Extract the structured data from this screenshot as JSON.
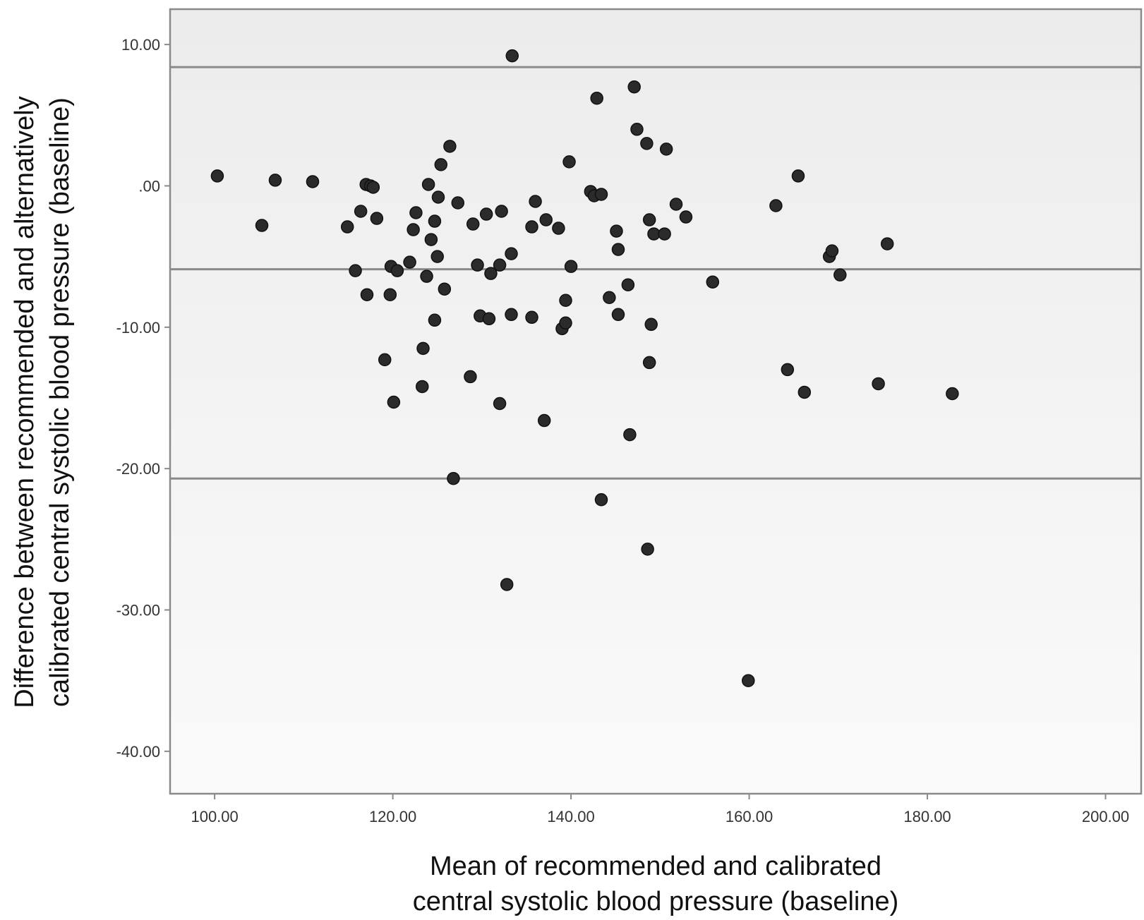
{
  "chart_data": {
    "type": "scatter",
    "xlabel_lines": [
      "Mean of recommended and calibrated",
      "central systolic blood pressure (baseline)"
    ],
    "ylabel_lines": [
      "Difference between recommended and alternatively",
      "calibrated central systolic blood pressure (baseline)"
    ],
    "xlim": [
      95,
      204
    ],
    "ylim": [
      -43,
      12.5
    ],
    "x_ticks": [
      100,
      120,
      140,
      160,
      180,
      200
    ],
    "x_tick_labels": [
      "100.00",
      "120.00",
      "140.00",
      "160.00",
      "180.00",
      "200.00"
    ],
    "y_ticks": [
      10,
      0,
      -10,
      -20,
      -30,
      -40
    ],
    "y_tick_labels": [
      "10.00",
      ".00",
      "-10.00",
      "-20.00",
      "-30.00",
      "-40.00"
    ],
    "reference_lines": [
      8.4,
      -5.9,
      -20.7
    ],
    "grid": false,
    "legend": "none",
    "colors": {
      "points": "#2b2b2b",
      "reference_line": "#8a8a8a",
      "frame": "#8a8a8a",
      "plot_bg_top": "#ececec",
      "plot_bg_bottom": "#fafafa"
    },
    "points": [
      {
        "x": 100.3,
        "y": 0.7
      },
      {
        "x": 105.3,
        "y": -2.8
      },
      {
        "x": 106.8,
        "y": 0.4
      },
      {
        "x": 111.0,
        "y": 0.3
      },
      {
        "x": 114.9,
        "y": -2.9
      },
      {
        "x": 115.8,
        "y": -6.0
      },
      {
        "x": 116.4,
        "y": -1.8
      },
      {
        "x": 117.0,
        "y": 0.1
      },
      {
        "x": 117.1,
        "y": -7.7
      },
      {
        "x": 117.5,
        "y": 0.0
      },
      {
        "x": 117.8,
        "y": -0.1
      },
      {
        "x": 118.2,
        "y": -2.3
      },
      {
        "x": 119.1,
        "y": -12.3
      },
      {
        "x": 119.8,
        "y": -5.7
      },
      {
        "x": 119.7,
        "y": -7.7
      },
      {
        "x": 120.1,
        "y": -15.3
      },
      {
        "x": 120.5,
        "y": -6.0
      },
      {
        "x": 121.9,
        "y": -5.4
      },
      {
        "x": 122.3,
        "y": -3.1
      },
      {
        "x": 122.6,
        "y": -1.9
      },
      {
        "x": 123.3,
        "y": -14.2
      },
      {
        "x": 123.4,
        "y": -11.5
      },
      {
        "x": 123.8,
        "y": -6.4
      },
      {
        "x": 124.0,
        "y": 0.1
      },
      {
        "x": 124.3,
        "y": -3.8
      },
      {
        "x": 124.7,
        "y": -2.5
      },
      {
        "x": 124.7,
        "y": -9.5
      },
      {
        "x": 125.0,
        "y": -5.0
      },
      {
        "x": 125.1,
        "y": -0.8
      },
      {
        "x": 125.4,
        "y": 1.5
      },
      {
        "x": 125.8,
        "y": -7.3
      },
      {
        "x": 126.4,
        "y": 2.8
      },
      {
        "x": 126.8,
        "y": -20.7
      },
      {
        "x": 127.3,
        "y": -1.2
      },
      {
        "x": 128.7,
        "y": -13.5
      },
      {
        "x": 129.0,
        "y": -2.7
      },
      {
        "x": 129.5,
        "y": -5.6
      },
      {
        "x": 129.8,
        "y": -9.2
      },
      {
        "x": 130.5,
        "y": -2.0
      },
      {
        "x": 130.8,
        "y": -9.4
      },
      {
        "x": 131.0,
        "y": -6.2
      },
      {
        "x": 132.0,
        "y": -15.4
      },
      {
        "x": 132.0,
        "y": -5.6
      },
      {
        "x": 132.2,
        "y": -1.8
      },
      {
        "x": 132.8,
        "y": -28.2
      },
      {
        "x": 133.3,
        "y": -9.1
      },
      {
        "x": 133.3,
        "y": -4.8
      },
      {
        "x": 133.4,
        "y": 9.2
      },
      {
        "x": 135.6,
        "y": -2.9
      },
      {
        "x": 135.6,
        "y": -9.3
      },
      {
        "x": 136.0,
        "y": -1.1
      },
      {
        "x": 137.0,
        "y": -16.6
      },
      {
        "x": 137.2,
        "y": -2.4
      },
      {
        "x": 138.6,
        "y": -3.0
      },
      {
        "x": 139.0,
        "y": -10.1
      },
      {
        "x": 139.4,
        "y": -8.1
      },
      {
        "x": 139.4,
        "y": -9.7
      },
      {
        "x": 139.8,
        "y": 1.7
      },
      {
        "x": 140.0,
        "y": -5.7
      },
      {
        "x": 142.2,
        "y": -0.4
      },
      {
        "x": 142.6,
        "y": -0.7
      },
      {
        "x": 142.9,
        "y": 6.2
      },
      {
        "x": 143.4,
        "y": -0.6
      },
      {
        "x": 143.4,
        "y": -22.2
      },
      {
        "x": 144.3,
        "y": -7.9
      },
      {
        "x": 145.1,
        "y": -3.2
      },
      {
        "x": 145.3,
        "y": -4.5
      },
      {
        "x": 145.3,
        "y": -9.1
      },
      {
        "x": 146.4,
        "y": -7.0
      },
      {
        "x": 146.6,
        "y": -17.6
      },
      {
        "x": 147.1,
        "y": 7.0
      },
      {
        "x": 147.4,
        "y": 4.0
      },
      {
        "x": 148.5,
        "y": 3.0
      },
      {
        "x": 148.6,
        "y": -25.7
      },
      {
        "x": 148.8,
        "y": -2.4
      },
      {
        "x": 148.8,
        "y": -12.5
      },
      {
        "x": 149.0,
        "y": -9.8
      },
      {
        "x": 149.3,
        "y": -3.4
      },
      {
        "x": 150.5,
        "y": -3.4
      },
      {
        "x": 150.7,
        "y": 2.6
      },
      {
        "x": 151.8,
        "y": -1.3
      },
      {
        "x": 152.9,
        "y": -2.2
      },
      {
        "x": 155.9,
        "y": -6.8
      },
      {
        "x": 159.9,
        "y": -35.0
      },
      {
        "x": 163.0,
        "y": -1.4
      },
      {
        "x": 164.3,
        "y": -13.0
      },
      {
        "x": 165.5,
        "y": 0.7
      },
      {
        "x": 166.2,
        "y": -14.6
      },
      {
        "x": 169.0,
        "y": -5.0
      },
      {
        "x": 169.3,
        "y": -4.6
      },
      {
        "x": 170.2,
        "y": -6.3
      },
      {
        "x": 174.5,
        "y": -14.0
      },
      {
        "x": 175.5,
        "y": -4.1
      },
      {
        "x": 182.8,
        "y": -14.7
      }
    ]
  }
}
